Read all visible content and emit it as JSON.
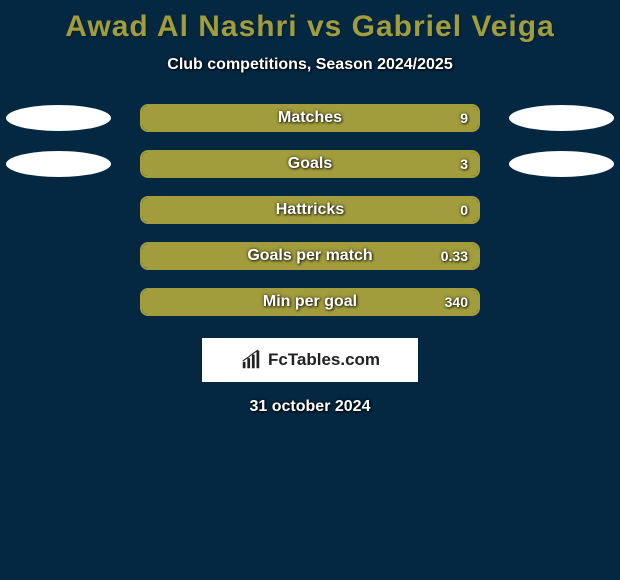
{
  "background_color": "#052842",
  "title": {
    "text": "Awad Al Nashri vs Gabriel Veiga",
    "color": "#a19c3c",
    "fontsize": 30
  },
  "subtitle": "Club competitions, Season 2024/2025",
  "player_left": {
    "color": "#a19c3c"
  },
  "player_right": {
    "color": "#a19c3c"
  },
  "bar_border_color": "#a19c3c",
  "stats": [
    {
      "label": "Matches",
      "left_value": "",
      "right_value": "9",
      "left_pct": 50,
      "right_pct": 50,
      "show_ellipses": true
    },
    {
      "label": "Goals",
      "left_value": "",
      "right_value": "3",
      "left_pct": 50,
      "right_pct": 50,
      "show_ellipses": true
    },
    {
      "label": "Hattricks",
      "left_value": "",
      "right_value": "0",
      "left_pct": 50,
      "right_pct": 50,
      "show_ellipses": false
    },
    {
      "label": "Goals per match",
      "left_value": "",
      "right_value": "0.33",
      "left_pct": 50,
      "right_pct": 50,
      "show_ellipses": false
    },
    {
      "label": "Min per goal",
      "left_value": "",
      "right_value": "340",
      "left_pct": 50,
      "right_pct": 50,
      "show_ellipses": false
    }
  ],
  "logo": {
    "text": "FcTables.com"
  },
  "date": "31 october 2024"
}
